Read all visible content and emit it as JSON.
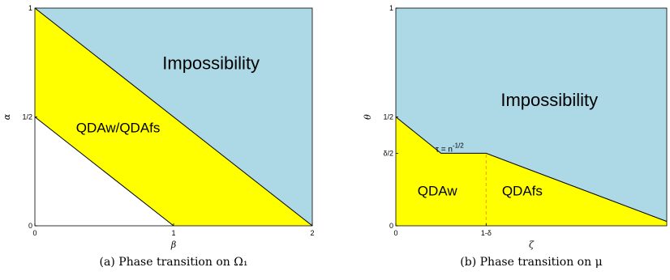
{
  "colors": {
    "impossibility": "#add8e6",
    "algorithm": "#ffff00",
    "background": "#ffffff",
    "boundary": "#000000",
    "divider": "#ff9900"
  },
  "chart_data": [
    {
      "type": "area",
      "caption": "(a) Phase transition on Ω₁",
      "xlabel": "β",
      "ylabel": "α",
      "xlim": [
        0,
        2
      ],
      "ylim": [
        0,
        1
      ],
      "xticks": [
        {
          "v": 0,
          "label": "0"
        },
        {
          "v": 1,
          "label": "1"
        },
        {
          "v": 2,
          "label": "2"
        }
      ],
      "yticks": [
        {
          "v": 0,
          "label": "0"
        },
        {
          "v": 0.5,
          "label": "1/2"
        },
        {
          "v": 1,
          "label": "1"
        }
      ],
      "regions": [
        {
          "name": "Impossibility",
          "label": "Impossibility",
          "color": "#add8e6",
          "polygon": [
            [
              0,
              1
            ],
            [
              2,
              1
            ],
            [
              2,
              0
            ]
          ]
        },
        {
          "name": "QDAw/QDAfs",
          "label": "QDAw/QDAfs",
          "color": "#ffff00",
          "polygon": [
            [
              0,
              1
            ],
            [
              2,
              0
            ],
            [
              1,
              0
            ],
            [
              0,
              0.5
            ]
          ]
        }
      ],
      "boundaries": [
        {
          "points": [
            [
              0,
              1
            ],
            [
              2,
              0
            ]
          ]
        },
        {
          "points": [
            [
              0,
              0.5
            ],
            [
              1,
              0
            ]
          ]
        }
      ],
      "labels": [
        {
          "text": "Impossibility",
          "x": 1.27,
          "y": 0.72
        },
        {
          "text": "QDAw/QDAfs",
          "x": 0.6,
          "y": 0.43
        }
      ]
    },
    {
      "type": "area",
      "caption": "(b) Phase transition on μ",
      "xlabel": "ζ",
      "ylabel": "θ",
      "xlim": [
        0,
        1.5
      ],
      "ylim": [
        0,
        1
      ],
      "xticks": [
        {
          "v": 0,
          "label": "0"
        },
        {
          "v": 0.5,
          "label": "1-δ"
        }
      ],
      "yticks": [
        {
          "v": 0,
          "label": "0"
        },
        {
          "v": 0.333,
          "label": "δ/2"
        },
        {
          "v": 0.5,
          "label": "1/2"
        },
        {
          "v": 1,
          "label": "1"
        }
      ],
      "regions": [
        {
          "name": "Impossibility",
          "label": "Impossibility",
          "color": "#add8e6",
          "polygon": [
            [
              0,
              1
            ],
            [
              1.5,
              1
            ],
            [
              1.5,
              0.02
            ],
            [
              0.5,
              0.333
            ],
            [
              0.25,
              0.333
            ],
            [
              0,
              0.5
            ]
          ]
        },
        {
          "name": "QDAw",
          "label": "QDAw",
          "color": "#ffff00",
          "polygon": [
            [
              0,
              0.5
            ],
            [
              0.25,
              0.333
            ],
            [
              0.5,
              0.333
            ],
            [
              0.5,
              0
            ],
            [
              0,
              0
            ]
          ]
        },
        {
          "name": "QDAfs",
          "label": "QDAfs",
          "color": "#ffff00",
          "polygon": [
            [
              0.5,
              0.333
            ],
            [
              1.5,
              0.02
            ],
            [
              1.5,
              0
            ],
            [
              0.5,
              0
            ]
          ]
        }
      ],
      "boundaries": [
        {
          "points": [
            [
              0,
              0.5
            ],
            [
              0.25,
              0.333
            ],
            [
              0.5,
              0.333
            ],
            [
              1.5,
              0.02
            ]
          ]
        }
      ],
      "divider": {
        "x": 0.5,
        "from": 0,
        "to": 0.333
      },
      "labels": [
        {
          "text": "Impossibility",
          "x": 0.85,
          "y": 0.55
        },
        {
          "text": "QDAw",
          "x": 0.23,
          "y": 0.14
        },
        {
          "text": "QDAfs",
          "x": 0.7,
          "y": 0.14
        }
      ],
      "annotation": {
        "text": "τ = n",
        "sup": "-1/2",
        "x": 0.22,
        "y": 0.34
      }
    }
  ]
}
